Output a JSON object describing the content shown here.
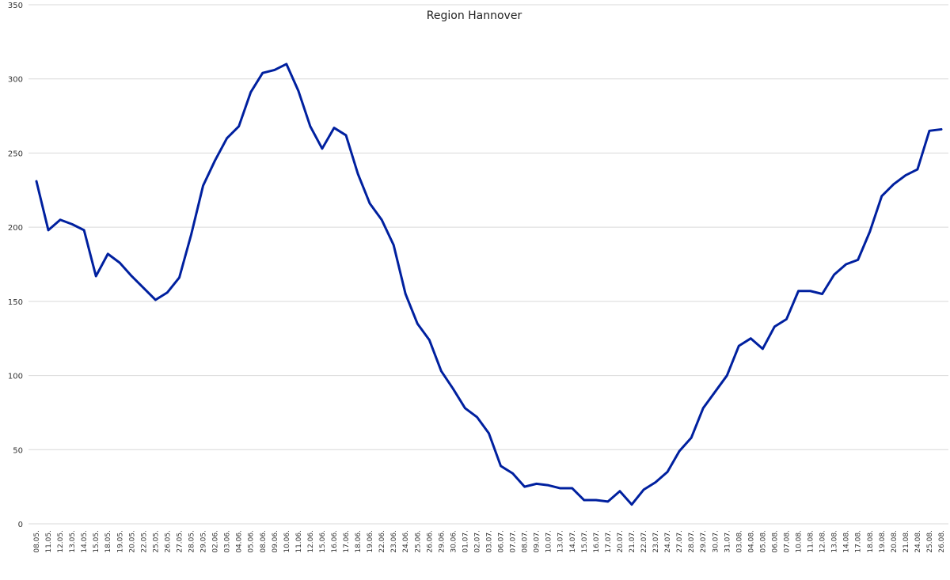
{
  "chart_data": {
    "type": "line",
    "title": "Region Hannover",
    "xlabel": "",
    "ylabel": "",
    "ylim": [
      0,
      350
    ],
    "y_ticks": [
      "0",
      "50",
      "100",
      "150",
      "200",
      "250",
      "300",
      "350"
    ],
    "grid": "horizontal",
    "line_color": "#00209f",
    "grid_color": "#d9d9d9",
    "categories": [
      "08.05.",
      "11.05.",
      "12.05.",
      "13.05.",
      "14.05.",
      "15.05.",
      "18.05.",
      "19.05.",
      "20.05.",
      "22.05.",
      "25.05.",
      "26.05.",
      "27.05.",
      "28.05.",
      "29.05.",
      "02.06.",
      "03.06.",
      "04.06.",
      "05.06.",
      "08.06.",
      "09.06.",
      "10.06.",
      "11.06.",
      "12.06.",
      "15.06.",
      "16.06.",
      "17.06.",
      "18.06.",
      "19.06.",
      "22.06.",
      "23.06.",
      "24.06.",
      "25.06.",
      "26.06.",
      "29.06.",
      "30.06.",
      "01.07.",
      "02.07.",
      "03.07.",
      "06.07.",
      "07.07.",
      "08.07.",
      "09.07.",
      "10.07.",
      "13.07.",
      "14.07.",
      "15.07.",
      "16.07.",
      "17.07.",
      "20.07.",
      "21.07.",
      "22.07.",
      "23.07.",
      "24.07.",
      "27.07.",
      "28.07.",
      "29.07.",
      "30.07.",
      "31.07.",
      "03.08.",
      "04.08.",
      "05.08.",
      "06.08.",
      "07.08.",
      "10.08.",
      "11.08.",
      "12.08.",
      "13.08.",
      "14.08.",
      "17.08.",
      "18.08.",
      "19.08.",
      "20.08.",
      "21.08.",
      "24.08.",
      "25.08.",
      "26.08."
    ],
    "series": [
      {
        "values": [
          231,
          198,
          205,
          202,
          198,
          167,
          182,
          176,
          167,
          159,
          151,
          156,
          166,
          195,
          228,
          245,
          260,
          268,
          291,
          304,
          306,
          310,
          292,
          268,
          253,
          267,
          262,
          236,
          216,
          205,
          188,
          155,
          135,
          124,
          103,
          91,
          78,
          72,
          61,
          39,
          34,
          25,
          27,
          26,
          24,
          24,
          16,
          16,
          15,
          22,
          13,
          23,
          28,
          35,
          49,
          58,
          78,
          89,
          100,
          120,
          125,
          118,
          133,
          138,
          157,
          157,
          155,
          168,
          175,
          178,
          197,
          221,
          229,
          235,
          239,
          265,
          266
        ]
      }
    ]
  }
}
